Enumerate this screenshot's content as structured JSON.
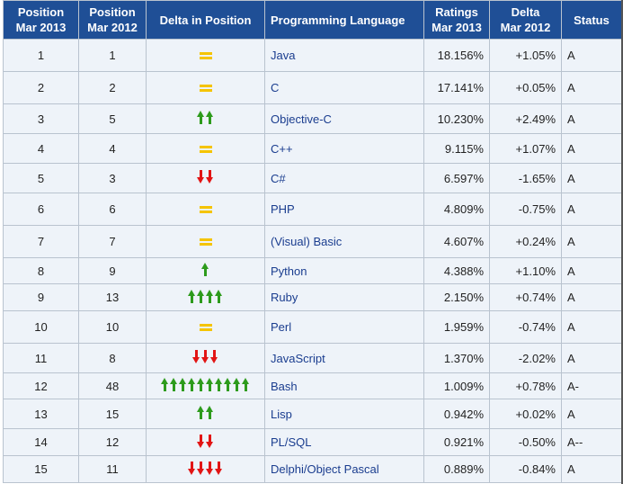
{
  "headers": {
    "pos2013": [
      "Position",
      "Mar 2013"
    ],
    "pos2012": [
      "Position",
      "Mar 2012"
    ],
    "delta_pos": "Delta in Position",
    "language": "Programming Language",
    "ratings": [
      "Ratings",
      "Mar 2013"
    ],
    "delta": [
      "Delta",
      "Mar 2012"
    ],
    "status": "Status"
  },
  "colors": {
    "header_bg": "#1f4f96",
    "row_bg": "#eef3f9",
    "link": "#1a3d8f",
    "up": "#2d9b1c",
    "down": "#e21414",
    "same": "#f5c400"
  },
  "rows": [
    {
      "pos2013": "1",
      "pos2012": "1",
      "change": "same",
      "count": 0,
      "language": "Java",
      "ratings": "18.156%",
      "delta": "+1.05%",
      "status": "A"
    },
    {
      "pos2013": "2",
      "pos2012": "2",
      "change": "same",
      "count": 0,
      "language": "C",
      "ratings": "17.141%",
      "delta": "+0.05%",
      "status": "A"
    },
    {
      "pos2013": "3",
      "pos2012": "5",
      "change": "up",
      "count": 2,
      "language": "Objective-C",
      "ratings": "10.230%",
      "delta": "+2.49%",
      "status": "A"
    },
    {
      "pos2013": "4",
      "pos2012": "4",
      "change": "same",
      "count": 0,
      "language": "C++",
      "ratings": "9.115%",
      "delta": "+1.07%",
      "status": "A"
    },
    {
      "pos2013": "5",
      "pos2012": "3",
      "change": "down",
      "count": 2,
      "language": "C#",
      "ratings": "6.597%",
      "delta": "-1.65%",
      "status": "A"
    },
    {
      "pos2013": "6",
      "pos2012": "6",
      "change": "same",
      "count": 0,
      "language": "PHP",
      "ratings": "4.809%",
      "delta": "-0.75%",
      "status": "A"
    },
    {
      "pos2013": "7",
      "pos2012": "7",
      "change": "same",
      "count": 0,
      "language": "(Visual) Basic",
      "ratings": "4.607%",
      "delta": "+0.24%",
      "status": "A"
    },
    {
      "pos2013": "8",
      "pos2012": "9",
      "change": "up",
      "count": 1,
      "language": "Python",
      "ratings": "4.388%",
      "delta": "+1.10%",
      "status": "A"
    },
    {
      "pos2013": "9",
      "pos2012": "13",
      "change": "up",
      "count": 4,
      "language": "Ruby",
      "ratings": "2.150%",
      "delta": "+0.74%",
      "status": "A"
    },
    {
      "pos2013": "10",
      "pos2012": "10",
      "change": "same",
      "count": 0,
      "language": "Perl",
      "ratings": "1.959%",
      "delta": "-0.74%",
      "status": "A"
    },
    {
      "pos2013": "11",
      "pos2012": "8",
      "change": "down",
      "count": 3,
      "language": "JavaScript",
      "ratings": "1.370%",
      "delta": "-2.02%",
      "status": "A"
    },
    {
      "pos2013": "12",
      "pos2012": "48",
      "change": "up",
      "count": 10,
      "language": "Bash",
      "ratings": "1.009%",
      "delta": "+0.78%",
      "status": "A-"
    },
    {
      "pos2013": "13",
      "pos2012": "15",
      "change": "up",
      "count": 2,
      "language": "Lisp",
      "ratings": "0.942%",
      "delta": "+0.02%",
      "status": "A"
    },
    {
      "pos2013": "14",
      "pos2012": "12",
      "change": "down",
      "count": 2,
      "language": "PL/SQL",
      "ratings": "0.921%",
      "delta": "-0.50%",
      "status": "A--"
    },
    {
      "pos2013": "15",
      "pos2012": "11",
      "change": "down",
      "count": 4,
      "language": "Delphi/Object Pascal",
      "ratings": "0.889%",
      "delta": "-0.84%",
      "status": "A"
    }
  ]
}
